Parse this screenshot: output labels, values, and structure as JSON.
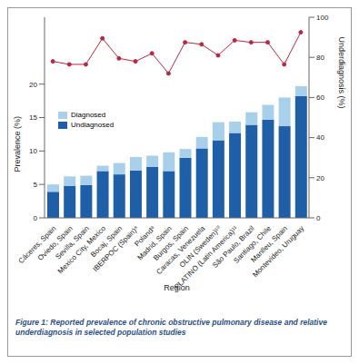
{
  "chart_data": {
    "type": "bar",
    "title": "Figure 1: Reported prevalence of chronic obstructive pulmonary disease and relative underdiagnosis in selected population studies",
    "x_label": "Region",
    "y_label": "Prevalence (%)",
    "y2_label": "Underdiagnosis (%)",
    "categories": [
      "Cáceres, Spain",
      "Oviedo, Spain",
      "Sevilla, Spain",
      "Mexico City, Mexico",
      "Bocaj, Spain",
      "IBERPOC (Spain)⁸",
      "Poland⁹",
      "Madrid, Spain",
      "Burgos, Spain",
      "Caracas, Venezuela",
      "OLIN (Sweden)¹⁰",
      "PLATINO (Latin America)¹¹",
      "São Paulo, Brazil",
      "Santiago, Chile",
      "Manlleu, Spain",
      "Montevideo, Uruguay"
    ],
    "series": [
      {
        "name": "Undiagnosed",
        "color": "#1f5fa8",
        "values": [
          3.9,
          4.8,
          4.9,
          7.0,
          6.5,
          7.1,
          7.6,
          7.0,
          9.0,
          10.4,
          11.6,
          12.7,
          13.9,
          14.7,
          13.7,
          18.2
        ]
      },
      {
        "name": "Diagnosed",
        "color": "#a9d0ea",
        "values": [
          1.1,
          1.4,
          1.4,
          0.8,
          1.7,
          2.0,
          1.7,
          2.8,
          1.3,
          1.7,
          2.7,
          1.7,
          1.9,
          2.2,
          4.3,
          1.5
        ]
      },
      {
        "type": "line",
        "axis": "y2",
        "color": "#b8283f",
        "marker": "circle",
        "line_style": "solid",
        "values": [
          78,
          76.5,
          76.5,
          89.5,
          79.5,
          78,
          82,
          72,
          87.5,
          86.5,
          81,
          88.5,
          87.5,
          87.5,
          76.5,
          92.5
        ]
      }
    ],
    "stacked": true,
    "legend": "upper left",
    "ylim": [
      0,
      30
    ],
    "yticks": [
      0,
      5,
      10,
      15,
      20
    ],
    "y2lim": [
      0,
      100
    ],
    "y2ticks": [
      0,
      20,
      40,
      60,
      80,
      100
    ]
  }
}
